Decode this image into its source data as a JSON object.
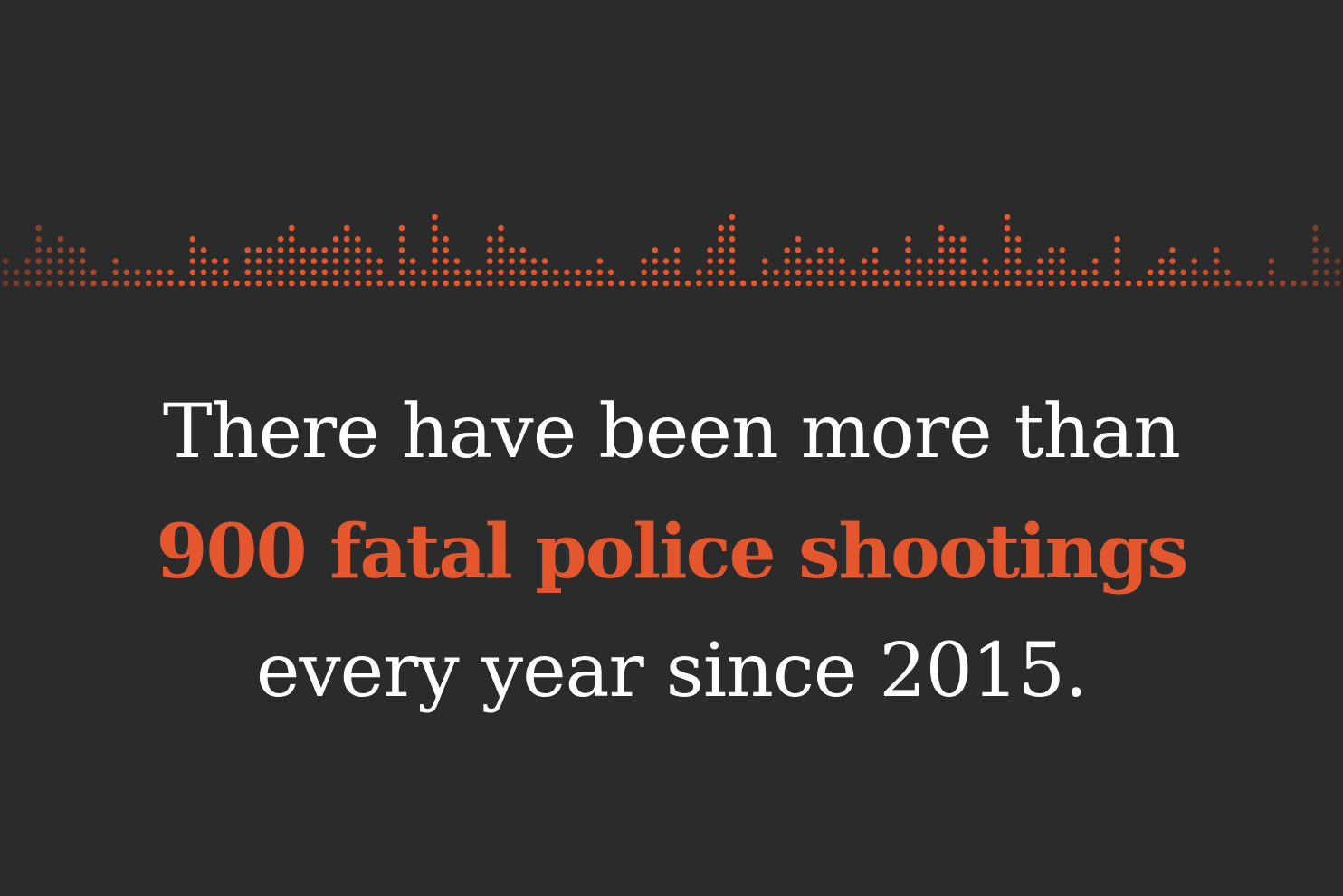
{
  "colors": {
    "background": "#2b2b2b",
    "accent": "#e4572e",
    "text": "#ffffff"
  },
  "headline": {
    "line1": "There have been more than",
    "line2": "900 fatal police shootings",
    "line3": "every year since 2015."
  },
  "dot_strip": {
    "dots_per_column": [
      2,
      1,
      2,
      5,
      3,
      4,
      3,
      3,
      1,
      0,
      2,
      1,
      1,
      1,
      1,
      1,
      0,
      4,
      3,
      2,
      2,
      0,
      3,
      3,
      3,
      4,
      5,
      3,
      3,
      3,
      4,
      5,
      4,
      3,
      2,
      0,
      5,
      2,
      1,
      6,
      4,
      2,
      1,
      1,
      4,
      5,
      3,
      3,
      2,
      2,
      1,
      1,
      1,
      1,
      2,
      1,
      0,
      0,
      2,
      3,
      2,
      3,
      0,
      1,
      3,
      5,
      6,
      0,
      0,
      2,
      1,
      3,
      4,
      2,
      3,
      3,
      2,
      1,
      2,
      3,
      1,
      1,
      4,
      2,
      2,
      5,
      4,
      4,
      1,
      2,
      1,
      6,
      4,
      1,
      2,
      3,
      3,
      1,
      1,
      2,
      0,
      4,
      0,
      0,
      1,
      2,
      3,
      1,
      2,
      1,
      3,
      1,
      0,
      0,
      0,
      2,
      0,
      0,
      0,
      5,
      3,
      2
    ]
  }
}
